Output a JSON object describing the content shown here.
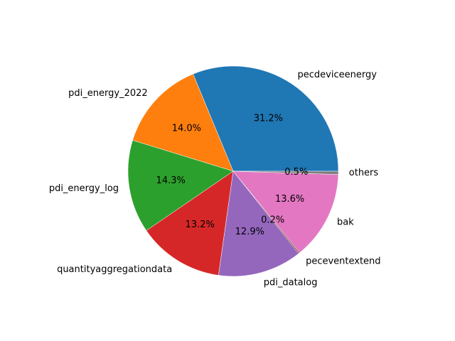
{
  "chart_data": {
    "type": "pie",
    "title": "",
    "slices": [
      {
        "label": "pecdeviceenergy",
        "value": 31.2,
        "pct_label": "31.2%",
        "color": "#1f77b4"
      },
      {
        "label": "pdi_energy_2022",
        "value": 14.0,
        "pct_label": "14.0%",
        "color": "#ff7f0e"
      },
      {
        "label": "pdi_energy_log",
        "value": 14.3,
        "pct_label": "14.3%",
        "color": "#2ca02c"
      },
      {
        "label": "quantityaggregationdata",
        "value": 13.2,
        "pct_label": "13.2%",
        "color": "#d62728"
      },
      {
        "label": "pdi_datalog",
        "value": 12.9,
        "pct_label": "12.9%",
        "color": "#9467bd"
      },
      {
        "label": "peceventextend",
        "value": 0.2,
        "pct_label": "0.2%",
        "color": "#8c564b"
      },
      {
        "label": "bak",
        "value": 13.6,
        "pct_label": "13.6%",
        "color": "#e377c2"
      },
      {
        "label": "others",
        "value": 0.5,
        "pct_label": "0.5%",
        "color": "#7f7f7f"
      }
    ],
    "start_angle": 0,
    "direction": "counterclockwise",
    "edge_color": "#ffffff"
  }
}
